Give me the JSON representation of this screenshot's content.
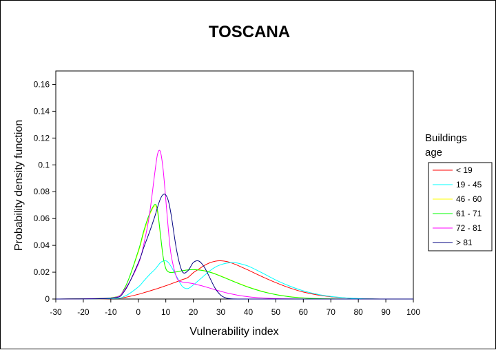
{
  "chart_data": {
    "type": "line",
    "title": "TOSCANA",
    "xlabel": "Vulnerability index",
    "ylabel": "Probability density function",
    "xlim": [
      -30,
      100
    ],
    "ylim": [
      0,
      0.17
    ],
    "x_ticks": [
      -30,
      -20,
      -10,
      0,
      10,
      20,
      30,
      40,
      50,
      60,
      70,
      80,
      90,
      100
    ],
    "x_tick_labels": [
      "-30",
      "-20",
      "-10",
      "0",
      "10",
      "20",
      "30",
      "40",
      "50",
      "60",
      "70",
      "80",
      "90",
      "100"
    ],
    "y_ticks": [
      0,
      0.02,
      0.04,
      0.06,
      0.08,
      0.1,
      0.12,
      0.14,
      0.16
    ],
    "y_tick_labels": [
      "0",
      "0.02",
      "0.04",
      "0.06",
      "0.08",
      "0.1",
      "0.12",
      "0.14",
      "0.16"
    ],
    "grid": false,
    "legend": {
      "title": "Buildings age",
      "title_lines": [
        "Buildings",
        "age"
      ],
      "position": "right"
    },
    "x": [
      -30,
      -10,
      -5,
      0,
      2,
      4,
      6,
      7,
      8,
      9,
      10,
      11,
      12,
      14,
      16,
      18,
      20,
      22,
      24,
      26,
      28,
      30,
      32,
      34,
      36,
      40,
      45,
      50,
      55,
      60,
      65,
      70,
      75,
      80,
      85,
      90,
      100
    ],
    "series": [
      {
        "name": "< 19",
        "color": "#ff0000",
        "values": [
          0,
          0.0002,
          0.0012,
          0.0035,
          0.0047,
          0.0059,
          0.0072,
          0.0078,
          0.0085,
          0.0092,
          0.0099,
          0.0106,
          0.0114,
          0.0129,
          0.0145,
          0.016,
          0.0196,
          0.0223,
          0.025,
          0.027,
          0.0282,
          0.0285,
          0.028,
          0.0268,
          0.0252,
          0.0215,
          0.0167,
          0.0122,
          0.0083,
          0.0052,
          0.0031,
          0.0017,
          0.0008,
          0.0003,
          0.0001,
          0,
          0
        ]
      },
      {
        "name": "19 - 45",
        "color": "#00ffff",
        "values": [
          0,
          0.0003,
          0.002,
          0.009,
          0.0135,
          0.018,
          0.022,
          0.0245,
          0.027,
          0.0283,
          0.0285,
          0.027,
          0.024,
          0.0165,
          0.0094,
          0.0078,
          0.0105,
          0.014,
          0.0175,
          0.021,
          0.0238,
          0.0256,
          0.0267,
          0.0271,
          0.0268,
          0.0245,
          0.0195,
          0.0142,
          0.0097,
          0.0061,
          0.0036,
          0.0019,
          0.0009,
          0.0003,
          0.0001,
          0,
          0
        ]
      },
      {
        "name": "46 - 60",
        "color": "#ffff00",
        "values": [
          0,
          0.0008,
          0.008,
          0.035,
          0.0495,
          0.062,
          0.0695,
          0.0645,
          0.048,
          0.0315,
          0.0228,
          0.0203,
          0.0198,
          0.0203,
          0.0211,
          0.0217,
          0.022,
          0.0218,
          0.0212,
          0.0202,
          0.0188,
          0.0172,
          0.0155,
          0.0138,
          0.0121,
          0.009,
          0.0058,
          0.0034,
          0.0018,
          0.0008,
          0.0003,
          0.0001,
          0,
          0,
          0,
          0,
          0
        ]
      },
      {
        "name": "61 - 71",
        "color": "#00ff00",
        "values": [
          0,
          0.0008,
          0.008,
          0.036,
          0.051,
          0.063,
          0.0705,
          0.066,
          0.049,
          0.032,
          0.0227,
          0.0202,
          0.0197,
          0.0203,
          0.0211,
          0.0217,
          0.0219,
          0.0216,
          0.021,
          0.02,
          0.0186,
          0.017,
          0.0153,
          0.0136,
          0.0119,
          0.0088,
          0.0056,
          0.0033,
          0.0017,
          0.0008,
          0.0003,
          0.0001,
          0,
          0,
          0,
          0,
          0
        ]
      },
      {
        "name": "72 - 81",
        "color": "#ff00ff",
        "values": [
          0,
          0.0006,
          0.007,
          0.026,
          0.041,
          0.062,
          0.094,
          0.108,
          0.11,
          0.097,
          0.074,
          0.05,
          0.032,
          0.0158,
          0.0127,
          0.0121,
          0.0114,
          0.0104,
          0.0093,
          0.0081,
          0.0069,
          0.0057,
          0.0046,
          0.0037,
          0.0029,
          0.0017,
          0.0008,
          0.0003,
          0.0001,
          0,
          0,
          0,
          0,
          0,
          0,
          0,
          0
        ]
      },
      {
        "name": "> 81",
        "color": "#000080",
        "values": [
          0,
          0.0005,
          0.006,
          0.027,
          0.0385,
          0.0495,
          0.0615,
          0.0685,
          0.0745,
          0.0778,
          0.0775,
          0.0725,
          0.062,
          0.0355,
          0.0205,
          0.021,
          0.0272,
          0.0283,
          0.0238,
          0.0158,
          0.0078,
          0.0028,
          0.0007,
          0.0001,
          0,
          0,
          0,
          0,
          0,
          0,
          0,
          0,
          0,
          0,
          0,
          0,
          0
        ]
      }
    ]
  }
}
